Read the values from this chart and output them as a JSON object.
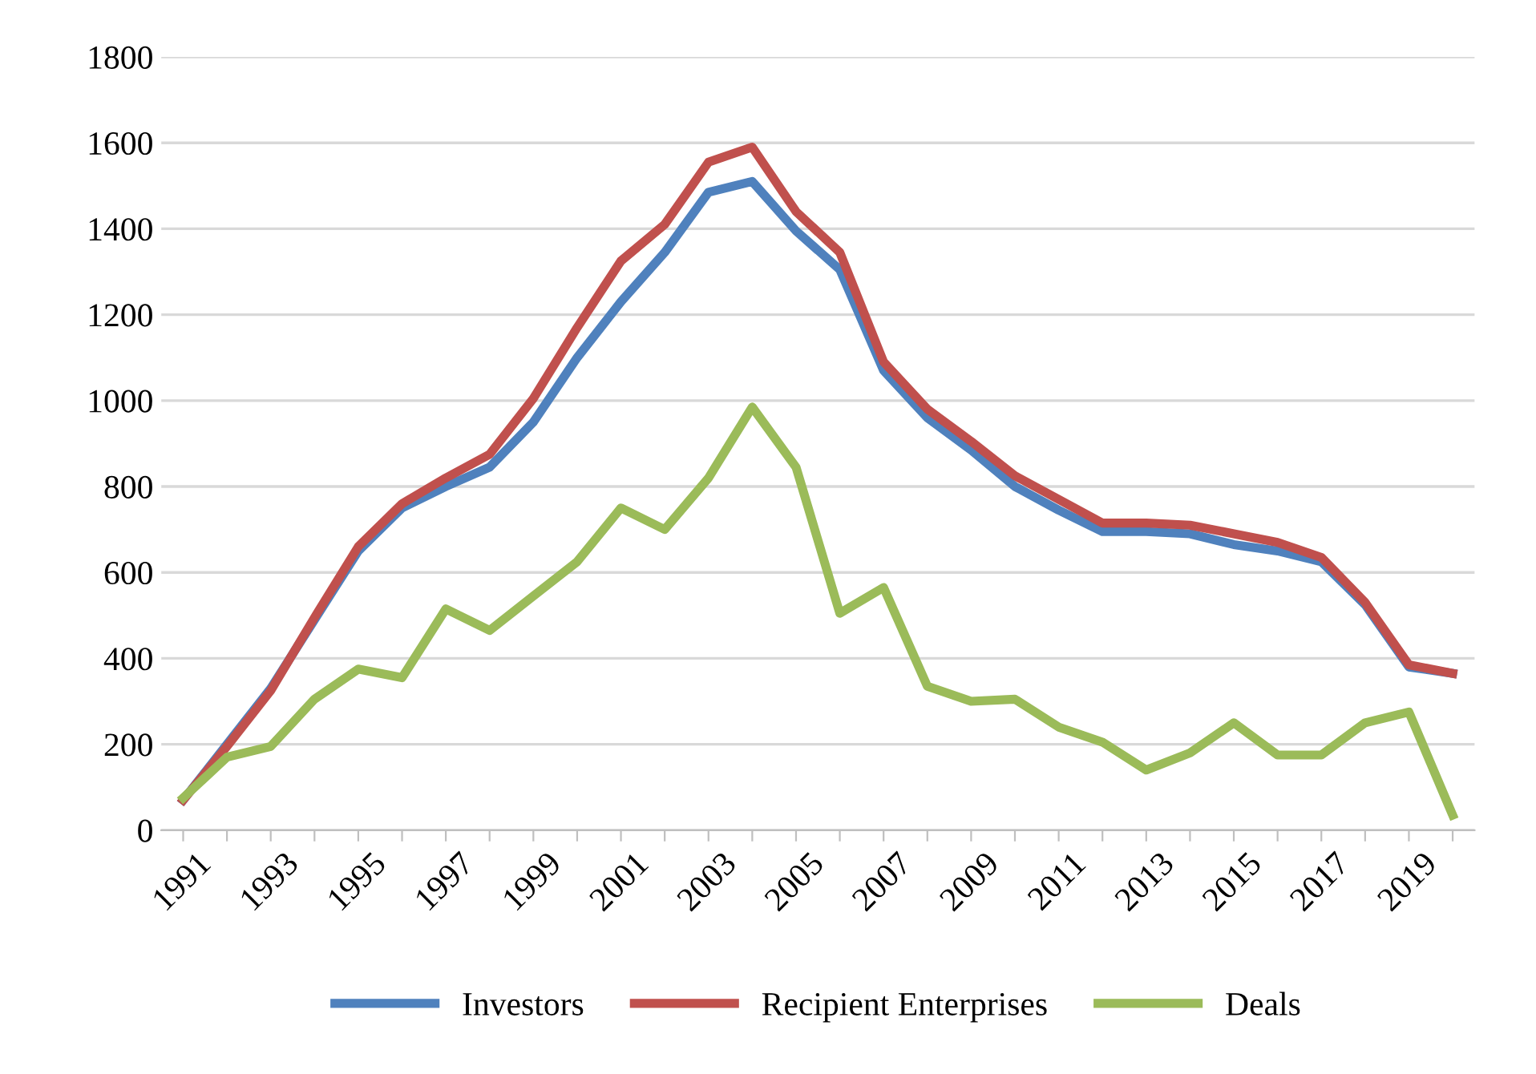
{
  "chart_data": {
    "type": "line",
    "categories": [
      "1991",
      null,
      "1993",
      null,
      "1995",
      null,
      "1997",
      null,
      "1999",
      null,
      "2001",
      null,
      "2003",
      null,
      "2005",
      null,
      "2007",
      null,
      "2009",
      null,
      "2011",
      null,
      "2013",
      null,
      "2015",
      null,
      "2017",
      null,
      "2019",
      null
    ],
    "series": [
      {
        "name": "Investors",
        "color": "#4f81bd",
        "values": [
          70,
          200,
          330,
          490,
          650,
          750,
          800,
          845,
          950,
          1100,
          1230,
          1345,
          1485,
          1510,
          1395,
          1305,
          1070,
          960,
          885,
          800,
          745,
          695,
          695,
          690,
          665,
          650,
          625,
          525,
          380,
          365
        ]
      },
      {
        "name": "Recipient Enterprises",
        "color": "#c0504d",
        "values": [
          70,
          195,
          325,
          495,
          660,
          760,
          820,
          875,
          1005,
          1170,
          1325,
          1410,
          1555,
          1590,
          1440,
          1345,
          1090,
          980,
          905,
          825,
          770,
          715,
          715,
          710,
          690,
          670,
          635,
          530,
          385,
          365
        ]
      },
      {
        "name": "Deals",
        "color": "#9bbb59",
        "values": [
          75,
          170,
          195,
          305,
          375,
          355,
          515,
          465,
          545,
          625,
          750,
          700,
          820,
          985,
          845,
          505,
          565,
          335,
          300,
          305,
          240,
          205,
          140,
          180,
          250,
          175,
          175,
          250,
          275,
          35
        ]
      }
    ],
    "ylim": [
      0,
      1800
    ],
    "yticks": [
      0,
      200,
      400,
      600,
      800,
      1000,
      1200,
      1400,
      1600,
      1800
    ],
    "grid": "y",
    "legend": "bottom",
    "marker": "none",
    "line_style": "solid"
  }
}
